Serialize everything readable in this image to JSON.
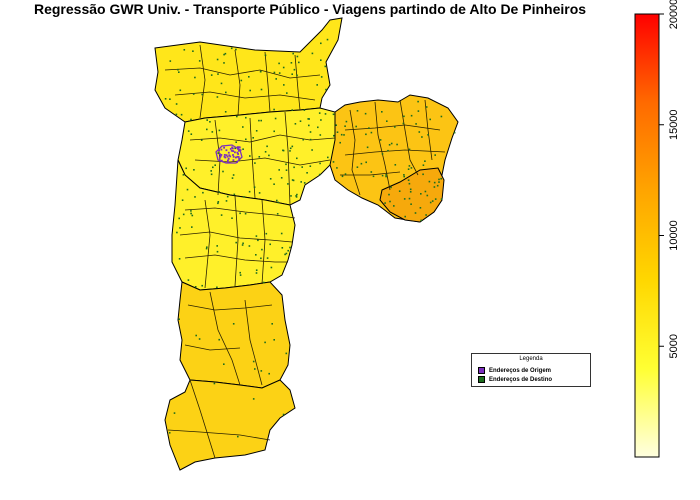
{
  "title": "Regressão GWR Univ. - Transporte Público - Viagens partindo de Alto De Pinheiros",
  "legend": {
    "title": "Legenda",
    "items": [
      {
        "label": "Endereços de Origem",
        "color": "#7b2fbe"
      },
      {
        "label": "Endereços de Destino",
        "color": "#1e6e1e"
      }
    ]
  },
  "colorbar": {
    "min": 0,
    "max": 20000,
    "ticks": [
      5000,
      10000,
      15000,
      20000
    ],
    "colors": [
      "#ffffe0",
      "#ffff33",
      "#ffd700",
      "#ffa500",
      "#ff6a00",
      "#ff0000"
    ]
  },
  "map": {
    "fill_north": "#ffe61a",
    "fill_center": "#fff02a",
    "fill_east": "#fcc414",
    "fill_east_dark": "#f6a90c",
    "fill_south": "#fcd215",
    "origin_color": "#7b2fbe",
    "destination_color": "#1e6e1e"
  }
}
